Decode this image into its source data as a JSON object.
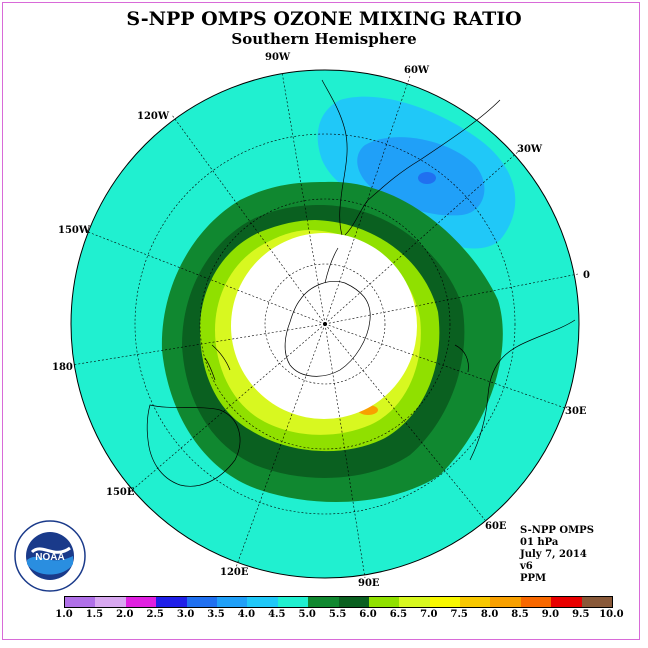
{
  "title": "S-NPP OMPS OZONE MIXING RATIO",
  "subtitle": "Southern Hemisphere",
  "longitude_labels": [
    "90W",
    "60W",
    "120W",
    "30W",
    "150W",
    "0",
    "180",
    "30E",
    "150E",
    "60E",
    "120E",
    "90E"
  ],
  "info": {
    "instrument": "S-NPP OMPS",
    "level": "01 hPa",
    "date": "July 7, 2014",
    "version": "v6",
    "units": "PPM"
  },
  "colorbar": {
    "colors": [
      "#b070e8",
      "#d8a8f0",
      "#e020e0",
      "#2020e8",
      "#2070f0",
      "#20a0f8",
      "#20c8f8",
      "#20f0d0",
      "#108830",
      "#0a6020",
      "#90e000",
      "#d8f820",
      "#f8f800",
      "#f8c800",
      "#f8a000",
      "#f86800",
      "#e80000",
      "#885838"
    ],
    "ticks": [
      "1.0",
      "1.5",
      "2.0",
      "2.5",
      "3.0",
      "3.5",
      "4.0",
      "4.5",
      "5.0",
      "5.5",
      "6.0",
      "6.5",
      "7.0",
      "7.5",
      "8.0",
      "8.5",
      "9.0",
      "9.5",
      "10.0"
    ]
  },
  "logo": {
    "text": "NOAA"
  }
}
